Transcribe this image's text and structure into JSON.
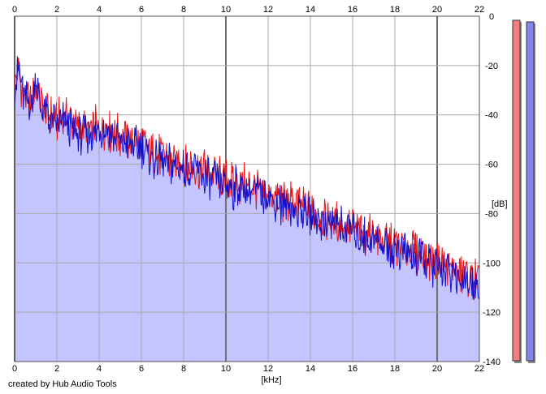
{
  "credit": "created by Hub Audio Tools",
  "chart_data": {
    "type": "line",
    "xlabel": "[kHz]",
    "ylabel": "[dB]",
    "xlim": [
      0,
      22
    ],
    "ylim": [
      -140,
      0
    ],
    "x_ticks": [
      0,
      2,
      4,
      6,
      8,
      10,
      12,
      14,
      16,
      18,
      20,
      22
    ],
    "y_ticks": [
      0,
      -20,
      -40,
      -60,
      -80,
      -100,
      -120,
      -140
    ],
    "grid": true,
    "colors": {
      "left": "#ee1111",
      "right": "#1111cc",
      "fill": "#c4c4ff",
      "left_meter": "#f08080",
      "right_meter": "#8484f0"
    },
    "series": [
      {
        "channel": "left",
        "x": [
          0,
          0.2,
          0.4,
          0.6,
          0.8,
          1.0,
          1.2,
          1.5,
          2.0,
          2.5,
          3.0,
          3.5,
          4.0,
          4.5,
          5.0,
          5.5,
          6.0,
          6.5,
          7.0,
          7.5,
          8.0,
          8.5,
          9.0,
          9.5,
          10.0,
          10.5,
          11.0,
          11.5,
          12.0,
          12.5,
          13.0,
          13.5,
          14.0,
          14.5,
          15.0,
          15.5,
          16.0,
          16.5,
          17.0,
          17.5,
          18.0,
          18.5,
          19.0,
          19.5,
          20.0,
          20.5,
          21.0,
          21.5,
          22.0
        ],
        "values": [
          -26,
          -22,
          -30,
          -33,
          -36,
          -28,
          -32,
          -38,
          -42,
          -40,
          -45,
          -46,
          -44,
          -46,
          -48,
          -50,
          -50,
          -55,
          -56,
          -58,
          -59,
          -60,
          -62,
          -64,
          -66,
          -67,
          -68,
          -69,
          -71,
          -73,
          -75,
          -76,
          -78,
          -80,
          -82,
          -83,
          -85,
          -87,
          -88,
          -90,
          -92,
          -93,
          -95,
          -97,
          -99,
          -101,
          -103,
          -105,
          -107
        ]
      },
      {
        "channel": "right",
        "x": [
          0,
          0.2,
          0.4,
          0.6,
          0.8,
          1.0,
          1.2,
          1.5,
          2.0,
          2.5,
          3.0,
          3.5,
          4.0,
          4.5,
          5.0,
          5.5,
          6.0,
          6.5,
          7.0,
          7.5,
          8.0,
          8.5,
          9.0,
          9.5,
          10.0,
          10.5,
          11.0,
          11.5,
          12.0,
          12.5,
          13.0,
          13.5,
          14.0,
          14.5,
          15.0,
          15.5,
          16.0,
          16.5,
          17.0,
          17.5,
          18.0,
          18.5,
          19.0,
          19.5,
          20.0,
          20.5,
          21.0,
          21.5,
          22.0
        ],
        "values": [
          -30,
          -18,
          -32,
          -34,
          -36,
          -24,
          -34,
          -40,
          -44,
          -42,
          -47,
          -48,
          -45,
          -47,
          -50,
          -52,
          -52,
          -57,
          -58,
          -60,
          -61,
          -62,
          -64,
          -66,
          -68,
          -69,
          -70,
          -71,
          -73,
          -75,
          -77,
          -78,
          -80,
          -82,
          -84,
          -85,
          -87,
          -89,
          -90,
          -92,
          -94,
          -95,
          -97,
          -99,
          -101,
          -103,
          -105,
          -107,
          -109
        ]
      }
    ]
  }
}
